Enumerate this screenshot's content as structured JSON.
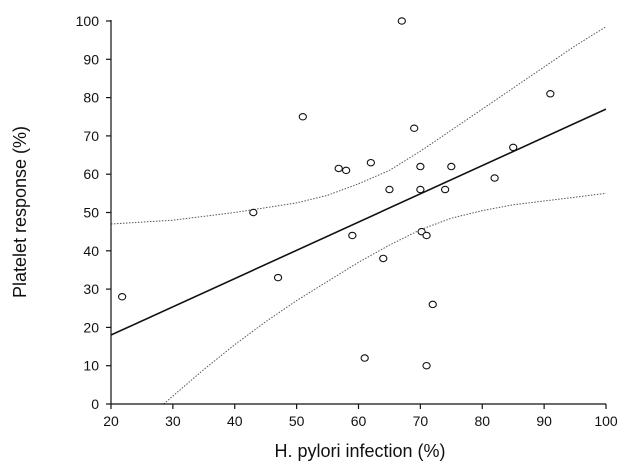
{
  "chart_data": {
    "type": "scatter",
    "title": "",
    "xlabel": "H. pylori infection (%)",
    "ylabel": "Platelet response (%)",
    "xlim": [
      20,
      100
    ],
    "ylim": [
      0,
      100
    ],
    "xticks": [
      "20",
      "30",
      "40",
      "50",
      "60",
      "70",
      "80",
      "90",
      "100"
    ],
    "yticks": [
      "0",
      "10",
      "20",
      "30",
      "40",
      "50",
      "60",
      "70",
      "80",
      "90",
      "100"
    ],
    "grid": false,
    "legend": "none",
    "points": [
      {
        "x": 21.8,
        "y": 28
      },
      {
        "x": 43,
        "y": 50
      },
      {
        "x": 47,
        "y": 33
      },
      {
        "x": 51,
        "y": 75
      },
      {
        "x": 56.8,
        "y": 61.5
      },
      {
        "x": 58,
        "y": 61
      },
      {
        "x": 59,
        "y": 44
      },
      {
        "x": 61,
        "y": 12
      },
      {
        "x": 62,
        "y": 63
      },
      {
        "x": 64,
        "y": 38
      },
      {
        "x": 65,
        "y": 56
      },
      {
        "x": 67,
        "y": 100
      },
      {
        "x": 69,
        "y": 72
      },
      {
        "x": 70,
        "y": 62
      },
      {
        "x": 70,
        "y": 56
      },
      {
        "x": 70.2,
        "y": 45
      },
      {
        "x": 71,
        "y": 44
      },
      {
        "x": 71,
        "y": 10
      },
      {
        "x": 72,
        "y": 26
      },
      {
        "x": 74,
        "y": 56
      },
      {
        "x": 75,
        "y": 62
      },
      {
        "x": 82,
        "y": 59
      },
      {
        "x": 85,
        "y": 67
      },
      {
        "x": 91,
        "y": 81
      }
    ],
    "regression_line": {
      "x": [
        20,
        100
      ],
      "y": [
        18,
        77
      ]
    },
    "confidence_upper": {
      "x": [
        20,
        30,
        40,
        50,
        55,
        60,
        65,
        70,
        75,
        80,
        85,
        90,
        95,
        100
      ],
      "y": [
        47,
        48,
        50,
        52.5,
        54.5,
        57.5,
        61,
        66,
        71.5,
        77,
        82.5,
        88,
        93.5,
        98.5
      ]
    },
    "confidence_lower": {
      "x": [
        28.5,
        35,
        40,
        45,
        50,
        55,
        60,
        65,
        70,
        75,
        80,
        85,
        90,
        95,
        100
      ],
      "y": [
        0,
        9,
        15.5,
        21.5,
        27,
        32,
        37,
        41.5,
        45.5,
        48.5,
        50.5,
        52,
        53,
        54,
        55
      ]
    },
    "colors": {
      "axis": "#111111",
      "line": "#111111",
      "ci": "#555555",
      "marker": "#111111"
    }
  }
}
